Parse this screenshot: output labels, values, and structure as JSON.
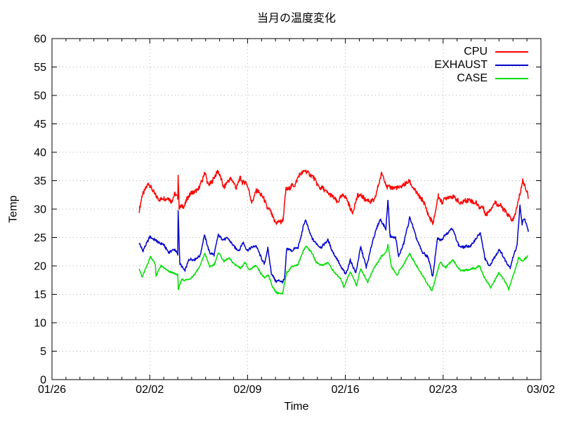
{
  "chart_data": {
    "type": "line",
    "title": "当月の温度変化",
    "xlabel": "Time",
    "ylabel": "Temp",
    "xlim_days_since_first_tick": [
      0,
      35
    ],
    "ylim": [
      0,
      60
    ],
    "y_tick_step": 5,
    "y_ticks": [
      0,
      5,
      10,
      15,
      20,
      25,
      30,
      35,
      40,
      45,
      50,
      55,
      60
    ],
    "x_major_ticks": [
      {
        "day": 0,
        "label": "01/26"
      },
      {
        "day": 7,
        "label": "02/02"
      },
      {
        "day": 14,
        "label": "02/09"
      },
      {
        "day": 21,
        "label": "02/16"
      },
      {
        "day": 28,
        "label": "02/23"
      },
      {
        "day": 35,
        "label": "03/02"
      }
    ],
    "x_minor_tick_every_days": 1,
    "grid": "dotted at major ticks",
    "legend_position": "top-right-inside",
    "frame_color": "#000000",
    "grid_color": "#b3b3b3",
    "series": [
      {
        "name": "CPU",
        "color": "#ff0000",
        "noise_amplitude": 0.55,
        "points": [
          [
            6.25,
            29.9
          ],
          [
            6.45,
            32.5
          ],
          [
            6.9,
            34.3
          ],
          [
            7.3,
            32.6
          ],
          [
            7.8,
            31.8
          ],
          [
            8.3,
            32.3
          ],
          [
            8.55,
            31.6
          ],
          [
            8.8,
            32.7
          ],
          [
            9.0,
            32.3
          ],
          [
            9.03,
            36.3
          ],
          [
            9.1,
            30.6
          ],
          [
            9.5,
            30.9
          ],
          [
            10.0,
            33.4
          ],
          [
            10.45,
            33.0
          ],
          [
            10.9,
            36.4
          ],
          [
            11.15,
            34.6
          ],
          [
            11.4,
            34.8
          ],
          [
            11.9,
            36.3
          ],
          [
            12.3,
            33.9
          ],
          [
            12.8,
            35.2
          ],
          [
            13.2,
            33.8
          ],
          [
            13.5,
            35.3
          ],
          [
            13.9,
            34.6
          ],
          [
            14.05,
            33.4
          ],
          [
            14.3,
            31.5
          ],
          [
            14.6,
            33.4
          ],
          [
            15.0,
            32.5
          ],
          [
            15.5,
            30.0
          ],
          [
            15.9,
            27.9
          ],
          [
            16.4,
            27.5
          ],
          [
            16.55,
            28.3
          ],
          [
            16.75,
            33.3
          ],
          [
            17.1,
            33.7
          ],
          [
            17.4,
            34.0
          ],
          [
            17.7,
            35.8
          ],
          [
            18.1,
            36.9
          ],
          [
            18.4,
            36.0
          ],
          [
            18.7,
            35.4
          ],
          [
            19.2,
            34.0
          ],
          [
            19.6,
            33.2
          ],
          [
            20.0,
            32.8
          ],
          [
            20.4,
            31.5
          ],
          [
            20.9,
            32.3
          ],
          [
            21.5,
            29.5
          ],
          [
            21.9,
            32.4
          ],
          [
            22.4,
            32.0
          ],
          [
            22.8,
            31.2
          ],
          [
            23.1,
            32.0
          ],
          [
            23.6,
            36.5
          ],
          [
            24.0,
            34.0
          ],
          [
            24.5,
            33.4
          ],
          [
            25.0,
            33.6
          ],
          [
            25.6,
            35.0
          ],
          [
            26.0,
            32.8
          ],
          [
            26.5,
            31.5
          ],
          [
            26.9,
            29.2
          ],
          [
            27.3,
            27.6
          ],
          [
            27.65,
            32.6
          ],
          [
            27.9,
            31.5
          ],
          [
            28.3,
            32.3
          ],
          [
            28.6,
            32.6
          ],
          [
            29.2,
            31.2
          ],
          [
            29.7,
            31.7
          ],
          [
            30.4,
            31.2
          ],
          [
            30.9,
            29.9
          ],
          [
            31.1,
            28.9
          ],
          [
            31.8,
            31.1
          ],
          [
            32.4,
            30.0
          ],
          [
            33.0,
            28.2
          ],
          [
            33.3,
            30.5
          ],
          [
            33.7,
            34.6
          ],
          [
            34.0,
            33.0
          ],
          [
            34.1,
            32.3
          ]
        ]
      },
      {
        "name": "EXHAUST",
        "color": "#0000cc",
        "noise_amplitude": 0.3,
        "points": [
          [
            6.25,
            23.8
          ],
          [
            6.5,
            22.4
          ],
          [
            7.0,
            25.2
          ],
          [
            7.5,
            24.2
          ],
          [
            8.0,
            23.6
          ],
          [
            8.4,
            22.5
          ],
          [
            8.8,
            22.8
          ],
          [
            9.0,
            21.9
          ],
          [
            9.03,
            29.7
          ],
          [
            9.15,
            20.3
          ],
          [
            9.5,
            19.2
          ],
          [
            9.8,
            21.0
          ],
          [
            10.2,
            21.0
          ],
          [
            10.6,
            21.7
          ],
          [
            10.9,
            25.3
          ],
          [
            11.3,
            22.3
          ],
          [
            11.6,
            22.0
          ],
          [
            11.9,
            25.4
          ],
          [
            12.2,
            24.8
          ],
          [
            12.6,
            24.6
          ],
          [
            13.0,
            23.4
          ],
          [
            13.4,
            23.0
          ],
          [
            13.7,
            24.0
          ],
          [
            14.0,
            22.7
          ],
          [
            14.6,
            23.4
          ],
          [
            15.2,
            20.3
          ],
          [
            15.45,
            23.0
          ],
          [
            15.7,
            18.6
          ],
          [
            16.0,
            17.4
          ],
          [
            16.5,
            17.3
          ],
          [
            16.65,
            17.8
          ],
          [
            16.8,
            23.0
          ],
          [
            17.2,
            22.6
          ],
          [
            17.6,
            23.2
          ],
          [
            18.0,
            27.0
          ],
          [
            18.15,
            28.0
          ],
          [
            18.5,
            25.5
          ],
          [
            18.9,
            24.0
          ],
          [
            19.3,
            23.3
          ],
          [
            19.75,
            24.4
          ],
          [
            20.2,
            22.0
          ],
          [
            20.7,
            19.8
          ],
          [
            21.0,
            18.5
          ],
          [
            21.35,
            21.0
          ],
          [
            21.75,
            18.9
          ],
          [
            22.1,
            23.4
          ],
          [
            22.5,
            19.6
          ],
          [
            23.0,
            25.0
          ],
          [
            23.5,
            28.2
          ],
          [
            23.9,
            26.5
          ],
          [
            24.05,
            31.7
          ],
          [
            24.2,
            25.3
          ],
          [
            24.6,
            24.8
          ],
          [
            24.8,
            21.7
          ],
          [
            25.2,
            24.0
          ],
          [
            25.6,
            28.5
          ],
          [
            26.1,
            25.0
          ],
          [
            26.5,
            22.5
          ],
          [
            26.9,
            21.8
          ],
          [
            27.25,
            18.0
          ],
          [
            27.6,
            24.8
          ],
          [
            27.9,
            24.6
          ],
          [
            28.6,
            26.8
          ],
          [
            29.1,
            23.7
          ],
          [
            29.5,
            23.2
          ],
          [
            30.0,
            23.5
          ],
          [
            30.65,
            26.0
          ],
          [
            31.0,
            21.5
          ],
          [
            31.35,
            19.9
          ],
          [
            32.0,
            23.0
          ],
          [
            32.8,
            19.6
          ],
          [
            33.3,
            24.0
          ],
          [
            33.5,
            30.5
          ],
          [
            33.65,
            27.5
          ],
          [
            33.8,
            28.5
          ],
          [
            34.1,
            26.2
          ]
        ]
      },
      {
        "name": "CASE",
        "color": "#00dd00",
        "noise_amplitude": 0.2,
        "points": [
          [
            6.25,
            19.6
          ],
          [
            6.45,
            18.0
          ],
          [
            7.05,
            21.5
          ],
          [
            7.4,
            20.3
          ],
          [
            7.45,
            18.3
          ],
          [
            7.8,
            20.0
          ],
          [
            8.3,
            19.1
          ],
          [
            8.7,
            18.6
          ],
          [
            9.0,
            18.4
          ],
          [
            9.05,
            15.8
          ],
          [
            9.3,
            17.6
          ],
          [
            9.7,
            17.5
          ],
          [
            10.2,
            18.5
          ],
          [
            10.6,
            19.8
          ],
          [
            10.95,
            22.3
          ],
          [
            11.3,
            19.9
          ],
          [
            11.6,
            20.3
          ],
          [
            11.95,
            22.3
          ],
          [
            12.3,
            20.9
          ],
          [
            12.7,
            21.3
          ],
          [
            13.1,
            20.1
          ],
          [
            13.5,
            19.7
          ],
          [
            13.8,
            20.5
          ],
          [
            14.1,
            19.4
          ],
          [
            14.6,
            20.0
          ],
          [
            15.2,
            17.8
          ],
          [
            15.5,
            18.5
          ],
          [
            15.8,
            16.4
          ],
          [
            16.1,
            15.2
          ],
          [
            16.5,
            15.1
          ],
          [
            16.8,
            19.0
          ],
          [
            17.2,
            19.9
          ],
          [
            17.6,
            20.3
          ],
          [
            18.0,
            22.8
          ],
          [
            18.2,
            23.5
          ],
          [
            18.6,
            22.2
          ],
          [
            18.9,
            20.8
          ],
          [
            19.3,
            20.1
          ],
          [
            19.75,
            20.7
          ],
          [
            20.2,
            19.0
          ],
          [
            20.7,
            17.5
          ],
          [
            20.9,
            16.3
          ],
          [
            21.35,
            19.0
          ],
          [
            21.8,
            16.6
          ],
          [
            22.1,
            19.5
          ],
          [
            22.6,
            17.2
          ],
          [
            23.1,
            19.8
          ],
          [
            23.6,
            21.8
          ],
          [
            23.9,
            22.3
          ],
          [
            24.05,
            23.8
          ],
          [
            24.3,
            19.8
          ],
          [
            24.7,
            18.4
          ],
          [
            25.1,
            20.0
          ],
          [
            25.6,
            22.2
          ],
          [
            26.0,
            20.5
          ],
          [
            26.45,
            18.6
          ],
          [
            27.2,
            15.6
          ],
          [
            27.8,
            20.7
          ],
          [
            28.2,
            19.8
          ],
          [
            28.7,
            21.0
          ],
          [
            29.2,
            19.4
          ],
          [
            29.7,
            19.2
          ],
          [
            30.2,
            19.5
          ],
          [
            30.6,
            19.9
          ],
          [
            31.0,
            17.8
          ],
          [
            31.4,
            16.2
          ],
          [
            32.0,
            18.9
          ],
          [
            32.35,
            17.5
          ],
          [
            32.7,
            15.8
          ],
          [
            33.4,
            21.3
          ],
          [
            33.7,
            20.9
          ],
          [
            34.05,
            21.8
          ]
        ]
      }
    ]
  }
}
